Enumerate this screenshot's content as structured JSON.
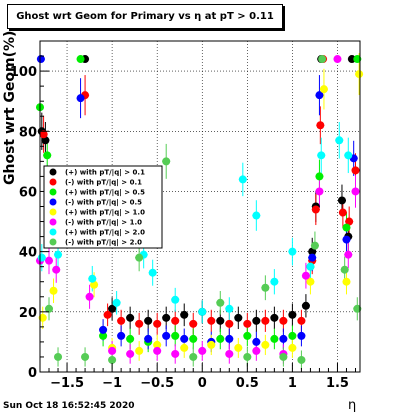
{
  "chart_data": {
    "type": "scatter",
    "title": "Ghost wrt Geom for Primary vs   η at pT > 0.11",
    "xlabel": "η",
    "ylabel": "Ghost wrt Geom(%)",
    "xlim": [
      -1.8,
      1.75
    ],
    "ylim": [
      0,
      110
    ],
    "x_ticks": [
      -1.5,
      -1,
      -0.5,
      0,
      0.5,
      1,
      1.5
    ],
    "x_tick_labels": [
      "−1.5",
      "−1",
      "−0.5",
      "0",
      "0.5",
      "1",
      "1.5"
    ],
    "y_ticks": [
      0,
      20,
      40,
      60,
      80,
      100
    ],
    "y_tick_labels": [
      "0",
      "20",
      "40",
      "60",
      "80",
      "100"
    ],
    "grid": true,
    "legend_position": "middle-left",
    "date": "Sun Oct 18 16:52:45 2020",
    "colors": [
      "#000000",
      "#ff0000",
      "#00ee00",
      "#0000ff",
      "#ffff00",
      "#ff00ff",
      "#00ffff",
      "#55cc55"
    ],
    "series": [
      {
        "name": "(+) with pT/|q| > 0.1",
        "points": [
          [
            -1.78,
            80
          ],
          [
            -1.74,
            77
          ],
          [
            -1.3,
            104
          ],
          [
            -1.0,
            21
          ],
          [
            -0.8,
            18
          ],
          [
            -0.6,
            17
          ],
          [
            -0.4,
            18
          ],
          [
            -0.2,
            19
          ],
          [
            0.0,
            20
          ],
          [
            0.2,
            17
          ],
          [
            0.4,
            18
          ],
          [
            0.6,
            17
          ],
          [
            0.8,
            18
          ],
          [
            1.0,
            19
          ],
          [
            1.15,
            22
          ],
          [
            1.22,
            40
          ],
          [
            1.26,
            55
          ],
          [
            1.32,
            104
          ],
          [
            1.55,
            57
          ],
          [
            1.62,
            45
          ],
          [
            1.66,
            104
          ]
        ]
      },
      {
        "name": "(-) with pT/|q| > 0.1",
        "points": [
          [
            -1.76,
            79
          ],
          [
            -1.3,
            92
          ],
          [
            -1.05,
            19
          ],
          [
            -0.9,
            17
          ],
          [
            -0.7,
            16
          ],
          [
            -0.5,
            16
          ],
          [
            -0.3,
            17
          ],
          [
            -0.1,
            16
          ],
          [
            0.1,
            17
          ],
          [
            0.3,
            16
          ],
          [
            0.5,
            16
          ],
          [
            0.7,
            17
          ],
          [
            0.9,
            17
          ],
          [
            1.1,
            17
          ],
          [
            1.22,
            37
          ],
          [
            1.26,
            54
          ],
          [
            1.31,
            82
          ],
          [
            1.34,
            104
          ],
          [
            1.56,
            53
          ],
          [
            1.63,
            50
          ],
          [
            1.7,
            67
          ]
        ]
      },
      {
        "name": "(+) with pT/|q| > 0.5",
        "points": [
          [
            -1.8,
            88
          ],
          [
            -1.72,
            72
          ],
          [
            -1.35,
            104
          ],
          [
            -1.1,
            12
          ],
          [
            -0.8,
            11
          ],
          [
            -0.6,
            10
          ],
          [
            -0.3,
            12
          ],
          [
            -0.1,
            11
          ],
          [
            0.2,
            11
          ],
          [
            0.5,
            12
          ],
          [
            0.8,
            11
          ],
          [
            1.0,
            12
          ],
          [
            1.2,
            35
          ],
          [
            1.3,
            65
          ],
          [
            1.6,
            48
          ],
          [
            1.72,
            104
          ]
        ]
      },
      {
        "name": "(-) with pT/|q| > 0.5",
        "points": [
          [
            -1.79,
            104
          ],
          [
            -1.35,
            91
          ],
          [
            -1.1,
            14
          ],
          [
            -0.9,
            12
          ],
          [
            -0.6,
            11
          ],
          [
            -0.4,
            12
          ],
          [
            -0.2,
            11
          ],
          [
            0.1,
            10
          ],
          [
            0.3,
            11
          ],
          [
            0.6,
            10
          ],
          [
            0.9,
            11
          ],
          [
            1.1,
            12
          ],
          [
            1.22,
            38
          ],
          [
            1.3,
            92
          ],
          [
            1.6,
            44
          ],
          [
            1.68,
            71
          ]
        ]
      },
      {
        "name": "(+) with pT/|q| > 1.0",
        "points": [
          [
            -1.77,
            18
          ],
          [
            -1.65,
            27
          ],
          [
            -1.2,
            29
          ],
          [
            -1.0,
            8
          ],
          [
            -0.7,
            7
          ],
          [
            -0.5,
            9
          ],
          [
            -0.2,
            8
          ],
          [
            0.1,
            9
          ],
          [
            0.4,
            8
          ],
          [
            0.7,
            9
          ],
          [
            1.0,
            8
          ],
          [
            1.2,
            30
          ],
          [
            1.35,
            94
          ],
          [
            1.6,
            30
          ],
          [
            1.74,
            99
          ]
        ]
      },
      {
        "name": "(-) with pT/|q| > 1.0",
        "points": [
          [
            -1.8,
            37
          ],
          [
            -1.7,
            37
          ],
          [
            -1.62,
            34
          ],
          [
            -1.25,
            25
          ],
          [
            -1.0,
            7
          ],
          [
            -0.8,
            6
          ],
          [
            -0.5,
            7
          ],
          [
            -0.3,
            6
          ],
          [
            0.0,
            7
          ],
          [
            0.3,
            6
          ],
          [
            0.6,
            7
          ],
          [
            0.9,
            6
          ],
          [
            1.15,
            32
          ],
          [
            1.3,
            60
          ],
          [
            1.5,
            104
          ],
          [
            1.62,
            39
          ],
          [
            1.7,
            60
          ]
        ]
      },
      {
        "name": "(+) with pT/|q| > 2.0",
        "points": [
          [
            -1.78,
            38
          ],
          [
            -1.6,
            39
          ],
          [
            -1.22,
            31
          ],
          [
            -0.95,
            23
          ],
          [
            -0.65,
            39
          ],
          [
            -0.55,
            33
          ],
          [
            -0.3,
            24
          ],
          [
            0.0,
            20
          ],
          [
            0.3,
            21
          ],
          [
            0.45,
            64
          ],
          [
            0.6,
            52
          ],
          [
            0.8,
            30
          ],
          [
            1.0,
            40
          ],
          [
            1.2,
            35
          ],
          [
            1.32,
            72
          ],
          [
            1.52,
            77
          ],
          [
            1.62,
            72
          ]
        ]
      },
      {
        "name": "(-) with pT/|q| > 2.0",
        "points": [
          [
            -1.7,
            21
          ],
          [
            -1.6,
            5
          ],
          [
            -1.3,
            5
          ],
          [
            -1.0,
            4
          ],
          [
            -0.7,
            38
          ],
          [
            -0.4,
            70
          ],
          [
            -0.1,
            5
          ],
          [
            0.2,
            23
          ],
          [
            0.5,
            5
          ],
          [
            0.7,
            28
          ],
          [
            0.9,
            5
          ],
          [
            1.1,
            4
          ],
          [
            1.25,
            42
          ],
          [
            1.33,
            104
          ],
          [
            1.58,
            34
          ],
          [
            1.72,
            21
          ]
        ]
      }
    ]
  }
}
